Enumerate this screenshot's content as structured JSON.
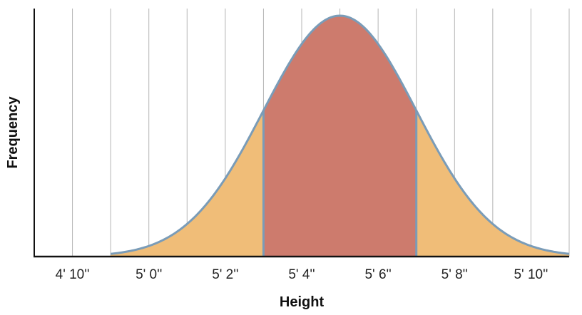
{
  "chart_data": {
    "type": "area",
    "title": "",
    "xlabel": "Height",
    "ylabel": "Frequency",
    "distribution": "normal",
    "mean_inches": 65,
    "sd_inches": 2,
    "x_range_inches": [
      57,
      71
    ],
    "curve_start_inches": 59,
    "curve_end_inches": 71,
    "highlighted_band_inches": [
      63,
      67
    ],
    "grid": "vertical",
    "x_ticks": [
      {
        "inches": 58,
        "label": "4' 10''"
      },
      {
        "inches": 60,
        "label": "5' 0''"
      },
      {
        "inches": 62,
        "label": "5' 2''"
      },
      {
        "inches": 64,
        "label": "5' 4''"
      },
      {
        "inches": 66,
        "label": "5' 6''"
      },
      {
        "inches": 68,
        "label": "5' 8''"
      },
      {
        "inches": 70,
        "label": "5' 10''"
      }
    ],
    "colors": {
      "tail_fill": "#f0bd78",
      "center_fill": "#cd7b6d",
      "curve_stroke": "#7a9cb8",
      "grid": "#b4b4b4",
      "axis": "#111111"
    }
  }
}
